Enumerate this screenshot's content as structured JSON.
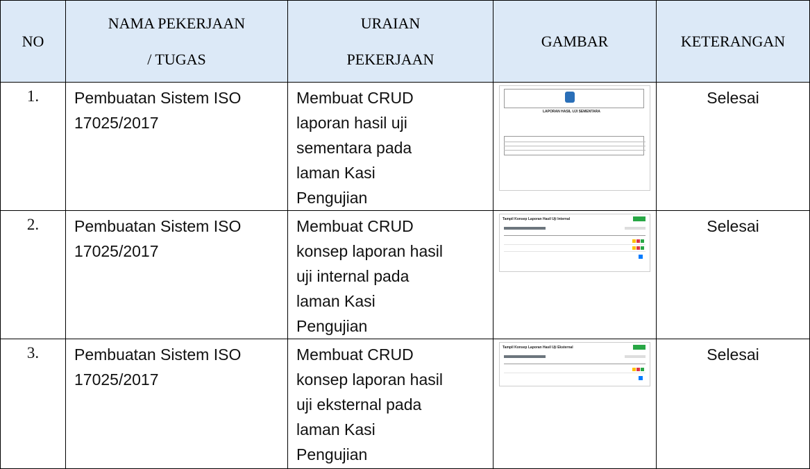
{
  "table": {
    "headers": [
      "NO",
      [
        "NAMA PEKERJAAN",
        "/ TUGAS"
      ],
      [
        "URAIAN",
        "PEKERJAAN"
      ],
      "GAMBAR",
      "KETERANGAN"
    ],
    "rows": [
      {
        "no": "1.",
        "nama": [
          "Pembuatan Sistem ISO",
          "17025/2017"
        ],
        "uraian": [
          "Membuat CRUD",
          "laporan hasil uji",
          "sementara pada",
          "laman Kasi",
          "Pengujian"
        ],
        "gambar": "LAPORAN HASIL UJI SEMENTARA",
        "keterangan": "Selesai"
      },
      {
        "no": "2.",
        "nama": [
          "Pembuatan Sistem ISO",
          "17025/2017"
        ],
        "uraian": [
          "Membuat CRUD",
          "konsep laporan hasil",
          "uji internal pada",
          "laman Kasi",
          "Pengujian"
        ],
        "gambar": "Tampil Konsep Laporan Hasil Uji Internal",
        "keterangan": "Selesai"
      },
      {
        "no": "3.",
        "nama": [
          "Pembuatan Sistem ISO",
          "17025/2017"
        ],
        "uraian": [
          "Membuat CRUD",
          "konsep laporan hasil",
          "uji eksternal pada",
          "laman Kasi",
          "Pengujian"
        ],
        "gambar": "Tampil Konsep Laporan Hasil Uji Eksternal",
        "keterangan": "Selesai"
      }
    ]
  }
}
